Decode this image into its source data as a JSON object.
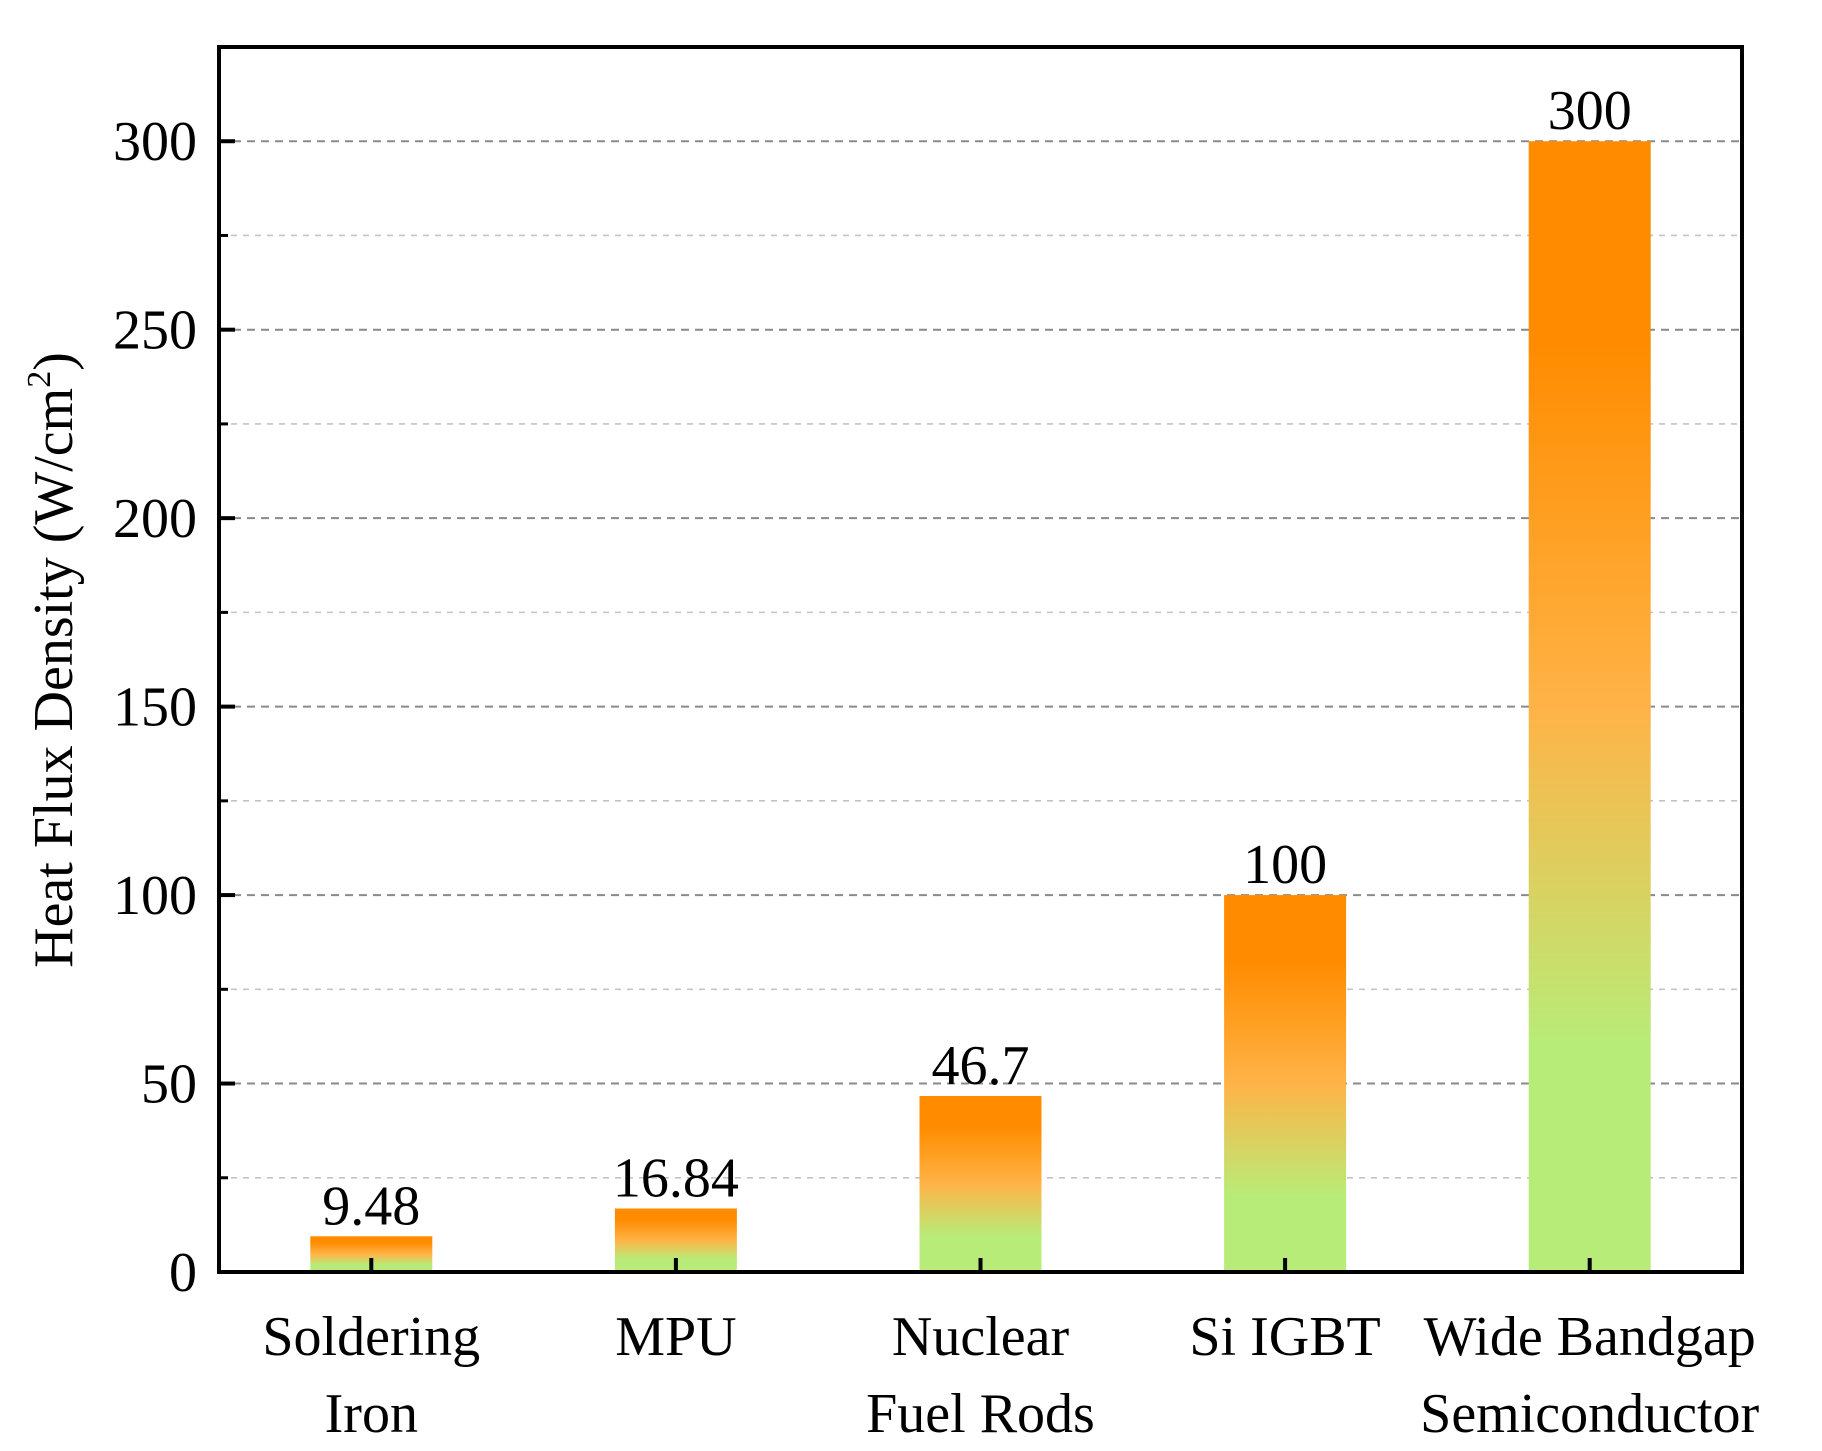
{
  "chart_data": {
    "type": "bar",
    "title": "",
    "xlabel": "",
    "ylabel": "Heat Flux Density (W/cm",
    "ylabel_superscript": "2",
    "ylabel_suffix": ")",
    "ylim": [
      0,
      325
    ],
    "yticks": [
      0,
      50,
      100,
      150,
      200,
      250,
      300
    ],
    "minor_grid_step": 25,
    "grid": true,
    "categories": [
      [
        "Soldering",
        "Iron"
      ],
      [
        "MPU"
      ],
      [
        "Nuclear",
        "Fuel Rods"
      ],
      [
        "Si IGBT"
      ],
      [
        "Wide Bandgap",
        "Semiconductor"
      ]
    ],
    "values": [
      9.48,
      16.84,
      46.7,
      100,
      300
    ],
    "data_labels": [
      "9.48",
      "16.84",
      "46.7",
      "100",
      "300"
    ],
    "gradient": {
      "top": "#ff8c00",
      "mid": "#ffb347",
      "bottom": "#b8ec78"
    }
  }
}
